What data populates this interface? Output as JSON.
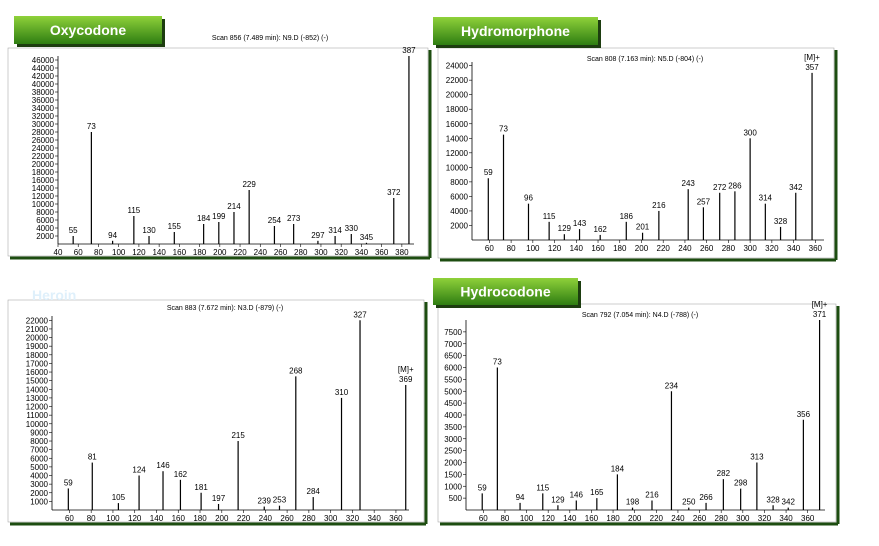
{
  "chart_data": [
    {
      "type": "bar",
      "title": "Oxycodone",
      "subtitle": "Scan 856 (7.489 min): N9.D (-852) (-)",
      "x": [
        55,
        73,
        94,
        115,
        130,
        155,
        184,
        199,
        214,
        229,
        254,
        273,
        297,
        314,
        330,
        345,
        372,
        387
      ],
      "values": [
        2000,
        28000,
        800,
        7000,
        2000,
        3000,
        5000,
        5500,
        8000,
        13500,
        4500,
        5000,
        800,
        2000,
        2500,
        300,
        11500,
        47000
      ],
      "color": "#000000",
      "xlim": [
        40,
        392
      ],
      "xticks": [
        40,
        60,
        80,
        100,
        120,
        140,
        160,
        180,
        200,
        220,
        240,
        260,
        280,
        300,
        320,
        340,
        360,
        380
      ],
      "ylim": [
        0,
        47000
      ],
      "yticks": [
        2000,
        4000,
        6000,
        8000,
        10000,
        12000,
        14000,
        16000,
        18000,
        20000,
        22000,
        24000,
        26000,
        28000,
        30000,
        32000,
        34000,
        36000,
        38000,
        40000,
        42000,
        44000,
        46000
      ]
    },
    {
      "type": "bar",
      "title": "Hydromorphone",
      "subtitle": "Scan 808 (7.163 min): N5.D (-804) (-)",
      "annotation": "[M]+",
      "x": [
        59,
        73,
        96,
        115,
        129,
        143,
        162,
        186,
        201,
        216,
        243,
        257,
        272,
        286,
        300,
        314,
        328,
        342,
        357
      ],
      "values": [
        8500,
        14500,
        5000,
        2500,
        800,
        1500,
        700,
        2500,
        1000,
        4000,
        7000,
        4500,
        6500,
        6700,
        14000,
        5000,
        1800,
        6500,
        23000
      ],
      "color": "#000000",
      "xlim": [
        44,
        368
      ],
      "xticks": [
        60,
        80,
        100,
        120,
        140,
        160,
        180,
        200,
        220,
        240,
        260,
        280,
        300,
        320,
        340,
        360
      ],
      "ylim": [
        0,
        24500
      ],
      "yticks": [
        2000,
        4000,
        6000,
        8000,
        10000,
        12000,
        14000,
        16000,
        18000,
        20000,
        22000,
        24000
      ]
    },
    {
      "type": "bar",
      "title": "Heroin",
      "subtitle": "Scan 883 (7.672 min): N3.D (-879) (-)",
      "annotation": "[M]+",
      "x": [
        59,
        81,
        105,
        124,
        146,
        162,
        181,
        197,
        215,
        239,
        253,
        268,
        284,
        310,
        327,
        369
      ],
      "values": [
        2500,
        5500,
        800,
        4000,
        4500,
        3500,
        2000,
        700,
        8000,
        400,
        500,
        15500,
        1500,
        13000,
        22000,
        14500
      ],
      "color": "#000000",
      "xlim": [
        44,
        372
      ],
      "xticks": [
        60,
        80,
        100,
        120,
        140,
        160,
        180,
        200,
        220,
        240,
        260,
        280,
        300,
        320,
        340,
        360
      ],
      "ylim": [
        0,
        22500
      ],
      "yticks": [
        1000,
        2000,
        3000,
        4000,
        5000,
        6000,
        7000,
        8000,
        9000,
        10000,
        11000,
        12000,
        13000,
        14000,
        15000,
        16000,
        17000,
        18000,
        19000,
        20000,
        21000,
        22000
      ]
    },
    {
      "type": "bar",
      "title": "Hydrocodone",
      "subtitle": "Scan 792 (7.054 min): N4.D (-788) (-)",
      "annotation": "[M]+",
      "x": [
        59,
        73,
        94,
        115,
        129,
        146,
        165,
        184,
        198,
        216,
        234,
        250,
        266,
        282,
        298,
        313,
        328,
        342,
        356,
        371
      ],
      "values": [
        700,
        6000,
        300,
        700,
        200,
        400,
        500,
        1500,
        100,
        400,
        5000,
        100,
        300,
        1300,
        900,
        2000,
        200,
        100,
        3800,
        8000
      ],
      "color": "#000000",
      "xlim": [
        44,
        376
      ],
      "xticks": [
        60,
        80,
        100,
        120,
        140,
        160,
        180,
        200,
        220,
        240,
        260,
        280,
        300,
        320,
        340,
        360
      ],
      "ylim": [
        0,
        8000
      ],
      "yticks": [
        500,
        1000,
        1500,
        2000,
        2500,
        3000,
        3500,
        4000,
        4500,
        5000,
        5500,
        6000,
        6500,
        7000,
        7500
      ]
    }
  ]
}
